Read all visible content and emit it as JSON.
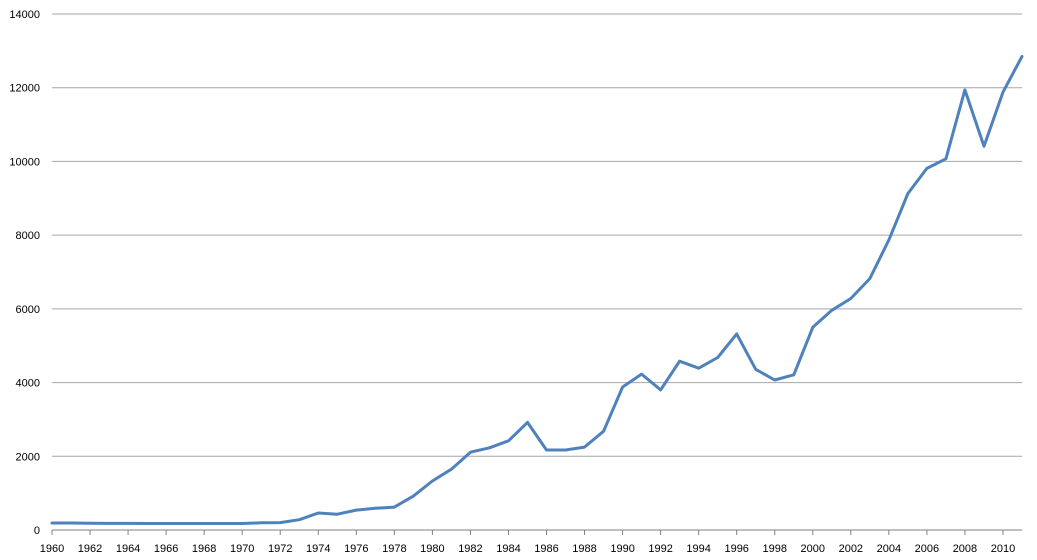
{
  "chart_data": {
    "type": "line",
    "title": "",
    "xlabel": "",
    "ylabel": "",
    "x": [
      1960,
      1961,
      1962,
      1963,
      1964,
      1965,
      1966,
      1967,
      1968,
      1969,
      1970,
      1971,
      1972,
      1973,
      1974,
      1975,
      1976,
      1977,
      1978,
      1979,
      1980,
      1981,
      1982,
      1983,
      1984,
      1985,
      1986,
      1987,
      1988,
      1989,
      1990,
      1991,
      1992,
      1993,
      1994,
      1995,
      1996,
      1997,
      1998,
      1999,
      2000,
      2001,
      2002,
      2003,
      2004,
      2005,
      2006,
      2007,
      2008,
      2009,
      2010,
      2011
    ],
    "xlim": [
      1960,
      2011
    ],
    "x_tick_labels": [
      "1960",
      "1962",
      "1964",
      "1966",
      "1968",
      "1970",
      "1972",
      "1974",
      "1976",
      "1978",
      "1980",
      "1982",
      "1984",
      "1986",
      "1988",
      "1990",
      "1992",
      "1994",
      "1996",
      "1998",
      "2000",
      "2002",
      "2004",
      "2006",
      "2008",
      "2010"
    ],
    "ylim": [
      0,
      14000
    ],
    "y_tick_labels": [
      "0",
      "2000",
      "4000",
      "6000",
      "8000",
      "10000",
      "12000",
      "14000"
    ],
    "grid": "horizontal",
    "legend": "none",
    "series": [
      {
        "color": "#4f81bd",
        "values": [
          190,
          190,
          185,
          180,
          180,
          175,
          175,
          175,
          175,
          175,
          175,
          195,
          200,
          280,
          460,
          430,
          540,
          590,
          620,
          920,
          1330,
          1650,
          2110,
          2230,
          2420,
          2920,
          2170,
          2170,
          2250,
          2680,
          3880,
          4230,
          3800,
          4580,
          4390,
          4680,
          5320,
          4360,
          4070,
          4210,
          5500,
          5960,
          6280,
          6820,
          7870,
          9130,
          9810,
          10070,
          11940,
          10410,
          11880,
          12850
        ]
      }
    ]
  }
}
